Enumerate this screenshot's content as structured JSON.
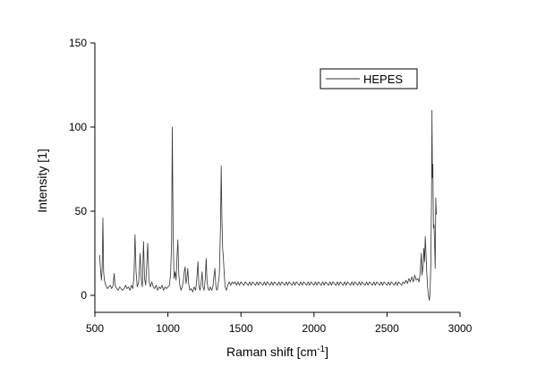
{
  "chart_data": {
    "type": "line",
    "xlabel": "Raman shift [cm",
    "xlabel_sup": "-1",
    "xlabel_end": "]",
    "ylabel": "Intensity [1]",
    "xlim": [
      500,
      3000
    ],
    "ylim": [
      -10,
      150
    ],
    "xticks": [
      500,
      1000,
      1500,
      2000,
      2500,
      3000
    ],
    "yticks": [
      0,
      50,
      100,
      150
    ],
    "grid": false,
    "legend_position": "top-right",
    "series": [
      {
        "name": "HEPES",
        "color": "#333333",
        "points": [
          [
            532,
            24
          ],
          [
            540,
            14
          ],
          [
            545,
            9
          ],
          [
            550,
            16
          ],
          [
            555,
            46
          ],
          [
            560,
            14
          ],
          [
            565,
            9
          ],
          [
            575,
            6
          ],
          [
            585,
            4
          ],
          [
            595,
            5
          ],
          [
            605,
            6
          ],
          [
            615,
            4
          ],
          [
            625,
            6
          ],
          [
            632,
            13
          ],
          [
            638,
            6
          ],
          [
            650,
            4
          ],
          [
            660,
            3
          ],
          [
            670,
            5
          ],
          [
            680,
            4
          ],
          [
            690,
            3
          ],
          [
            700,
            4
          ],
          [
            710,
            6
          ],
          [
            720,
            4
          ],
          [
            730,
            5
          ],
          [
            740,
            3
          ],
          [
            750,
            6
          ],
          [
            760,
            4
          ],
          [
            768,
            12
          ],
          [
            775,
            36
          ],
          [
            782,
            14
          ],
          [
            790,
            5
          ],
          [
            800,
            8
          ],
          [
            810,
            25
          ],
          [
            818,
            9
          ],
          [
            825,
            5
          ],
          [
            833,
            32
          ],
          [
            840,
            10
          ],
          [
            848,
            6
          ],
          [
            855,
            18
          ],
          [
            862,
            31
          ],
          [
            870,
            9
          ],
          [
            880,
            5
          ],
          [
            890,
            8
          ],
          [
            900,
            5
          ],
          [
            910,
            4
          ],
          [
            920,
            6
          ],
          [
            930,
            3
          ],
          [
            940,
            5
          ],
          [
            950,
            4
          ],
          [
            960,
            6
          ],
          [
            970,
            3
          ],
          [
            980,
            5
          ],
          [
            990,
            4
          ],
          [
            1000,
            5
          ],
          [
            1010,
            6
          ],
          [
            1018,
            12
          ],
          [
            1025,
            30
          ],
          [
            1030,
            100
          ],
          [
            1036,
            36
          ],
          [
            1042,
            10
          ],
          [
            1050,
            14
          ],
          [
            1056,
            9
          ],
          [
            1062,
            22
          ],
          [
            1068,
            33
          ],
          [
            1075,
            12
          ],
          [
            1082,
            6
          ],
          [
            1090,
            3
          ],
          [
            1098,
            5
          ],
          [
            1105,
            8
          ],
          [
            1112,
            14
          ],
          [
            1118,
            17
          ],
          [
            1124,
            7
          ],
          [
            1130,
            10
          ],
          [
            1136,
            16
          ],
          [
            1142,
            7
          ],
          [
            1150,
            3
          ],
          [
            1160,
            4
          ],
          [
            1170,
            2
          ],
          [
            1180,
            5
          ],
          [
            1190,
            3
          ],
          [
            1198,
            10
          ],
          [
            1206,
            20
          ],
          [
            1212,
            6
          ],
          [
            1220,
            3
          ],
          [
            1228,
            8
          ],
          [
            1234,
            14
          ],
          [
            1240,
            5
          ],
          [
            1248,
            3
          ],
          [
            1256,
            10
          ],
          [
            1262,
            22
          ],
          [
            1268,
            8
          ],
          [
            1275,
            4
          ],
          [
            1282,
            3
          ],
          [
            1290,
            5
          ],
          [
            1300,
            3
          ],
          [
            1308,
            5
          ],
          [
            1316,
            12
          ],
          [
            1322,
            16
          ],
          [
            1328,
            6
          ],
          [
            1334,
            3
          ],
          [
            1340,
            4
          ],
          [
            1346,
            8
          ],
          [
            1352,
            12
          ],
          [
            1360,
            40
          ],
          [
            1365,
            77
          ],
          [
            1370,
            45
          ],
          [
            1375,
            28
          ],
          [
            1380,
            22
          ],
          [
            1386,
            12
          ],
          [
            1392,
            5
          ],
          [
            1400,
            3
          ],
          [
            1410,
            6
          ],
          [
            1420,
            8
          ],
          [
            1430,
            6
          ],
          [
            1440,
            8
          ],
          [
            1450,
            7
          ],
          [
            1460,
            8
          ],
          [
            1470,
            6
          ],
          [
            1480,
            8
          ],
          [
            1490,
            6
          ],
          [
            1500,
            8
          ],
          [
            1510,
            7
          ],
          [
            1520,
            6
          ],
          [
            1530,
            8
          ],
          [
            1540,
            7
          ],
          [
            1550,
            6
          ],
          [
            1560,
            8
          ],
          [
            1570,
            6
          ],
          [
            1580,
            8
          ],
          [
            1590,
            7
          ],
          [
            1600,
            6
          ],
          [
            1610,
            8
          ],
          [
            1620,
            6
          ],
          [
            1630,
            8
          ],
          [
            1640,
            7
          ],
          [
            1650,
            6
          ],
          [
            1660,
            8
          ],
          [
            1670,
            6
          ],
          [
            1680,
            8
          ],
          [
            1690,
            7
          ],
          [
            1700,
            6
          ],
          [
            1710,
            8
          ],
          [
            1720,
            6
          ],
          [
            1730,
            8
          ],
          [
            1740,
            7
          ],
          [
            1750,
            6
          ],
          [
            1760,
            8
          ],
          [
            1770,
            6
          ],
          [
            1780,
            8
          ],
          [
            1790,
            7
          ],
          [
            1800,
            6
          ],
          [
            1810,
            8
          ],
          [
            1820,
            6
          ],
          [
            1830,
            8
          ],
          [
            1840,
            7
          ],
          [
            1850,
            6
          ],
          [
            1860,
            8
          ],
          [
            1870,
            6
          ],
          [
            1880,
            8
          ],
          [
            1890,
            7
          ],
          [
            1900,
            6
          ],
          [
            1910,
            8
          ],
          [
            1920,
            6
          ],
          [
            1930,
            8
          ],
          [
            1940,
            7
          ],
          [
            1950,
            6
          ],
          [
            1960,
            8
          ],
          [
            1970,
            6
          ],
          [
            1980,
            8
          ],
          [
            1990,
            7
          ],
          [
            2000,
            6
          ],
          [
            2010,
            8
          ],
          [
            2020,
            6
          ],
          [
            2030,
            8
          ],
          [
            2040,
            7
          ],
          [
            2050,
            6
          ],
          [
            2060,
            8
          ],
          [
            2070,
            6
          ],
          [
            2080,
            8
          ],
          [
            2090,
            7
          ],
          [
            2100,
            6
          ],
          [
            2110,
            8
          ],
          [
            2120,
            6
          ],
          [
            2130,
            8
          ],
          [
            2140,
            7
          ],
          [
            2150,
            6
          ],
          [
            2160,
            8
          ],
          [
            2170,
            6
          ],
          [
            2180,
            8
          ],
          [
            2190,
            7
          ],
          [
            2200,
            6
          ],
          [
            2210,
            8
          ],
          [
            2220,
            6
          ],
          [
            2230,
            8
          ],
          [
            2240,
            7
          ],
          [
            2250,
            6
          ],
          [
            2260,
            8
          ],
          [
            2270,
            6
          ],
          [
            2280,
            8
          ],
          [
            2290,
            7
          ],
          [
            2300,
            6
          ],
          [
            2310,
            8
          ],
          [
            2320,
            6
          ],
          [
            2330,
            8
          ],
          [
            2340,
            7
          ],
          [
            2350,
            6
          ],
          [
            2360,
            8
          ],
          [
            2370,
            6
          ],
          [
            2380,
            8
          ],
          [
            2390,
            7
          ],
          [
            2400,
            6
          ],
          [
            2410,
            8
          ],
          [
            2420,
            6
          ],
          [
            2430,
            8
          ],
          [
            2440,
            7
          ],
          [
            2450,
            6
          ],
          [
            2460,
            8
          ],
          [
            2470,
            6
          ],
          [
            2480,
            8
          ],
          [
            2490,
            7
          ],
          [
            2500,
            6
          ],
          [
            2510,
            8
          ],
          [
            2520,
            6
          ],
          [
            2530,
            8
          ],
          [
            2540,
            7
          ],
          [
            2550,
            6
          ],
          [
            2560,
            8
          ],
          [
            2570,
            6
          ],
          [
            2580,
            8
          ],
          [
            2590,
            7
          ],
          [
            2600,
            6
          ],
          [
            2610,
            8
          ],
          [
            2620,
            7
          ],
          [
            2630,
            9
          ],
          [
            2640,
            7
          ],
          [
            2650,
            10
          ],
          [
            2660,
            8
          ],
          [
            2670,
            11
          ],
          [
            2680,
            8
          ],
          [
            2690,
            12
          ],
          [
            2700,
            9
          ],
          [
            2710,
            10
          ],
          [
            2720,
            8
          ],
          [
            2728,
            14
          ],
          [
            2735,
            25
          ],
          [
            2740,
            12
          ],
          [
            2748,
            18
          ],
          [
            2752,
            28
          ],
          [
            2757,
            20
          ],
          [
            2762,
            35
          ],
          [
            2767,
            25
          ],
          [
            2772,
            14
          ],
          [
            2778,
            5
          ],
          [
            2784,
            0
          ],
          [
            2790,
            -3
          ],
          [
            2795,
            2
          ],
          [
            2800,
            18
          ],
          [
            2805,
            60
          ],
          [
            2808,
            110
          ],
          [
            2811,
            70
          ],
          [
            2814,
            78
          ],
          [
            2818,
            40
          ],
          [
            2822,
            42
          ],
          [
            2826,
            30
          ],
          [
            2830,
            16
          ],
          [
            2834,
            58
          ],
          [
            2838,
            48
          ]
        ]
      }
    ]
  }
}
